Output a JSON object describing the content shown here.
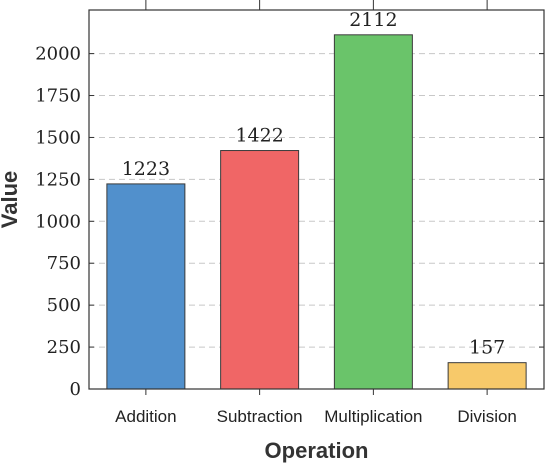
{
  "chart_data": {
    "type": "bar",
    "title": "",
    "xlabel": "Operation",
    "ylabel": "Value",
    "categories": [
      "Addition",
      "Subtraction",
      "Multiplication",
      "Division"
    ],
    "values": [
      1223,
      1422,
      2112,
      157
    ],
    "colors": [
      "#5190cc",
      "#f06666",
      "#6ac46a",
      "#f7c96a"
    ],
    "ylim": [
      0,
      2260
    ],
    "yticks": [
      0,
      250,
      500,
      750,
      1000,
      1250,
      1500,
      1750,
      2000
    ],
    "grid": true,
    "data_labels": true,
    "legend": "none"
  }
}
